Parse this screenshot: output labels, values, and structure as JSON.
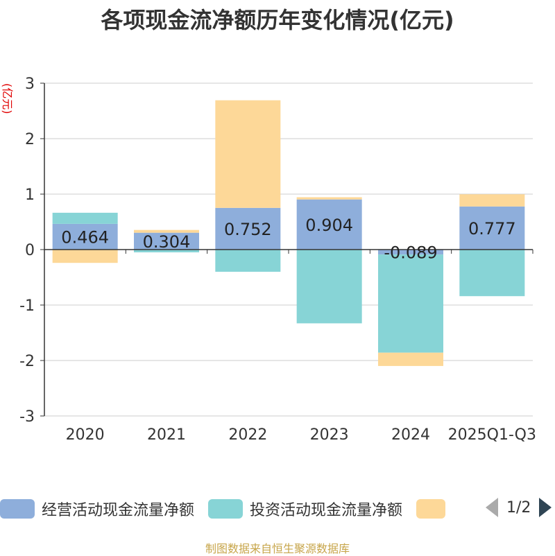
{
  "title": "各项现金流净额历年变化情况(亿元)",
  "chart_data": {
    "type": "bar",
    "stacked": true,
    "categories": [
      "2020",
      "2021",
      "2022",
      "2023",
      "2024",
      "2025Q1-Q3"
    ],
    "ylabel": "(亿元)",
    "ylim": [
      -3,
      3
    ],
    "yticks": [
      3,
      2,
      1,
      0,
      -1,
      -2,
      -3
    ],
    "grid": true,
    "series": [
      {
        "name": "经营活动现金流量净额",
        "color": "#8eaedb",
        "values": [
          0.464,
          0.304,
          0.752,
          0.904,
          -0.089,
          0.777
        ],
        "labels": [
          "0.464",
          "0.304",
          "0.752",
          "0.904",
          "-0.089",
          "0.777"
        ]
      },
      {
        "name": "投资活动现金流量净额",
        "color": "#87d4d6",
        "values": [
          0.2,
          -0.05,
          -0.4,
          -1.33,
          -1.77,
          -0.84
        ]
      },
      {
        "name": "",
        "color": "#fdd898",
        "values": [
          -0.24,
          0.05,
          1.94,
          0.04,
          -0.24,
          0.22
        ]
      }
    ]
  },
  "legend": {
    "items": [
      {
        "label": "经营活动现金流量净额",
        "color": "#8eaedb"
      },
      {
        "label": "投资活动现金流量净额",
        "color": "#87d4d6"
      },
      {
        "label": "",
        "color": "#fdd898"
      }
    ],
    "page": "1/2"
  },
  "source": "制图数据来自恒生聚源数据库"
}
